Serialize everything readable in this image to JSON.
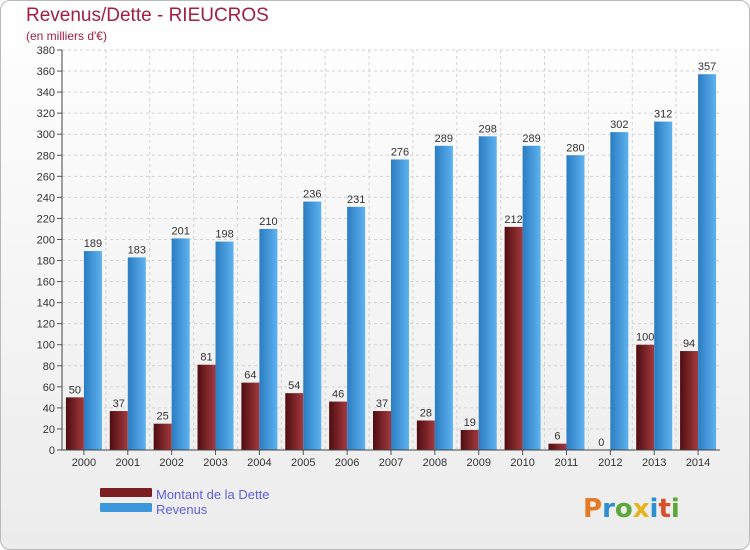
{
  "chart_data": {
    "type": "bar",
    "title": "Revenus/Dette - RIEUCROS",
    "subtitle": "(en milliers d'€)",
    "categories": [
      "2000",
      "2001",
      "2002",
      "2003",
      "2004",
      "2005",
      "2006",
      "2007",
      "2008",
      "2009",
      "2010",
      "2011",
      "2012",
      "2013",
      "2014"
    ],
    "series": [
      {
        "name": "Montant de la Dette",
        "color": "#7a1e22",
        "values": [
          50,
          37,
          25,
          81,
          64,
          54,
          46,
          37,
          28,
          19,
          212,
          6,
          0,
          100,
          94
        ]
      },
      {
        "name": "Revenus",
        "color": "#3d97dc",
        "values": [
          189,
          183,
          201,
          198,
          210,
          236,
          231,
          276,
          289,
          298,
          289,
          280,
          302,
          312,
          357
        ]
      }
    ],
    "xlabel": "",
    "ylabel": "",
    "ylim": [
      0,
      380
    ],
    "ytick_step": 20,
    "grid": true,
    "legend": "bottom-left"
  },
  "branding": {
    "logo_text": "Proxiti",
    "letter_colors": [
      "#e47a23",
      "#2f8fd0",
      "#5aa83a",
      "#e8b41e",
      "#2f8fd0",
      "#d94f2a",
      "#5aa83a"
    ]
  }
}
